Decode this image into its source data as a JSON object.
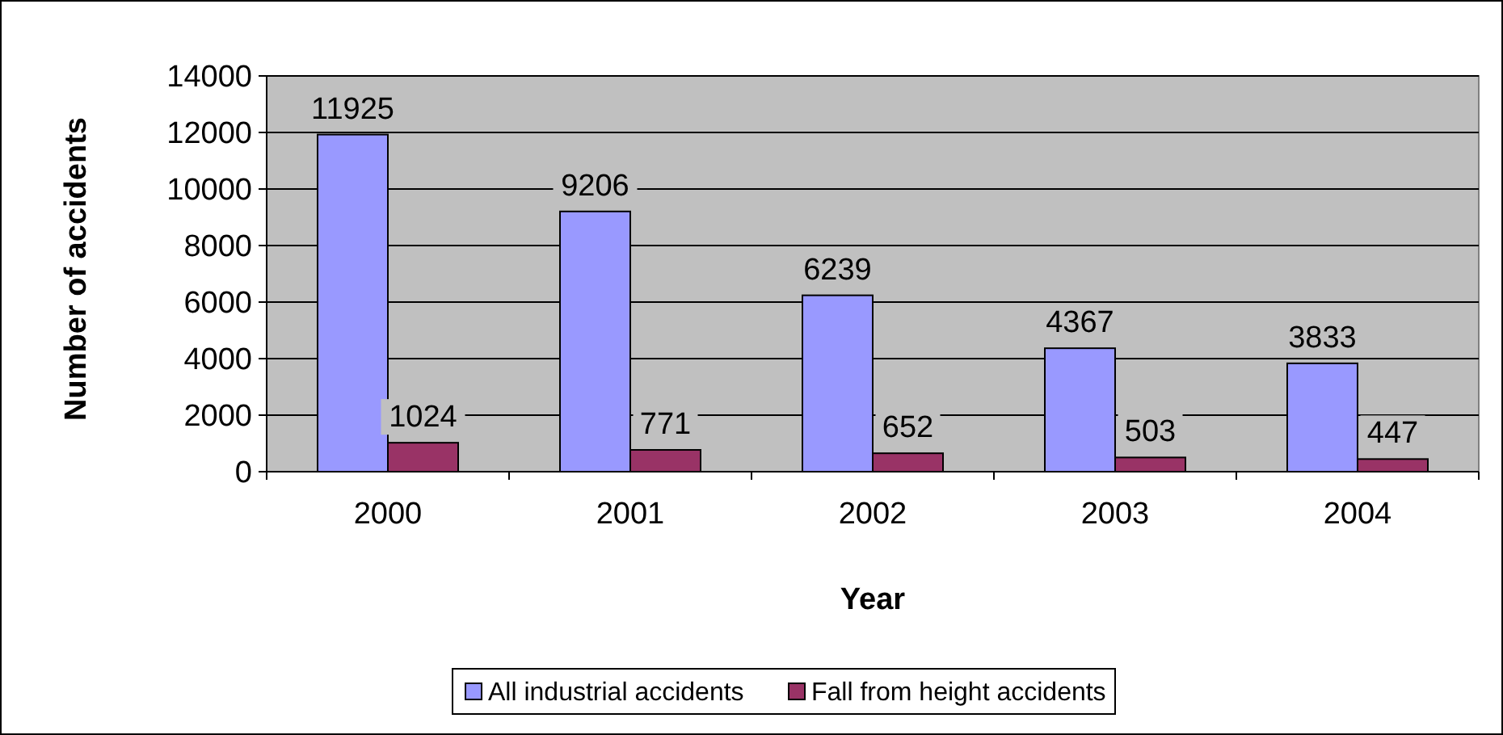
{
  "chart_data": {
    "type": "bar",
    "xlabel": "Year",
    "ylabel": "Number of accidents",
    "categories": [
      "2000",
      "2001",
      "2002",
      "2003",
      "2004"
    ],
    "series": [
      {
        "name": "All industrial accidents",
        "color": "#9999ff",
        "values": [
          11925,
          9206,
          6239,
          4367,
          3833
        ]
      },
      {
        "name": "Fall from height accidents",
        "color": "#993366",
        "values": [
          1024,
          771,
          652,
          503,
          447
        ]
      }
    ],
    "ylim": [
      0,
      14000
    ],
    "yticks": [
      0,
      2000,
      4000,
      6000,
      8000,
      10000,
      12000,
      14000
    ],
    "grid": "y",
    "legend": "bottom",
    "data_labels": true
  }
}
